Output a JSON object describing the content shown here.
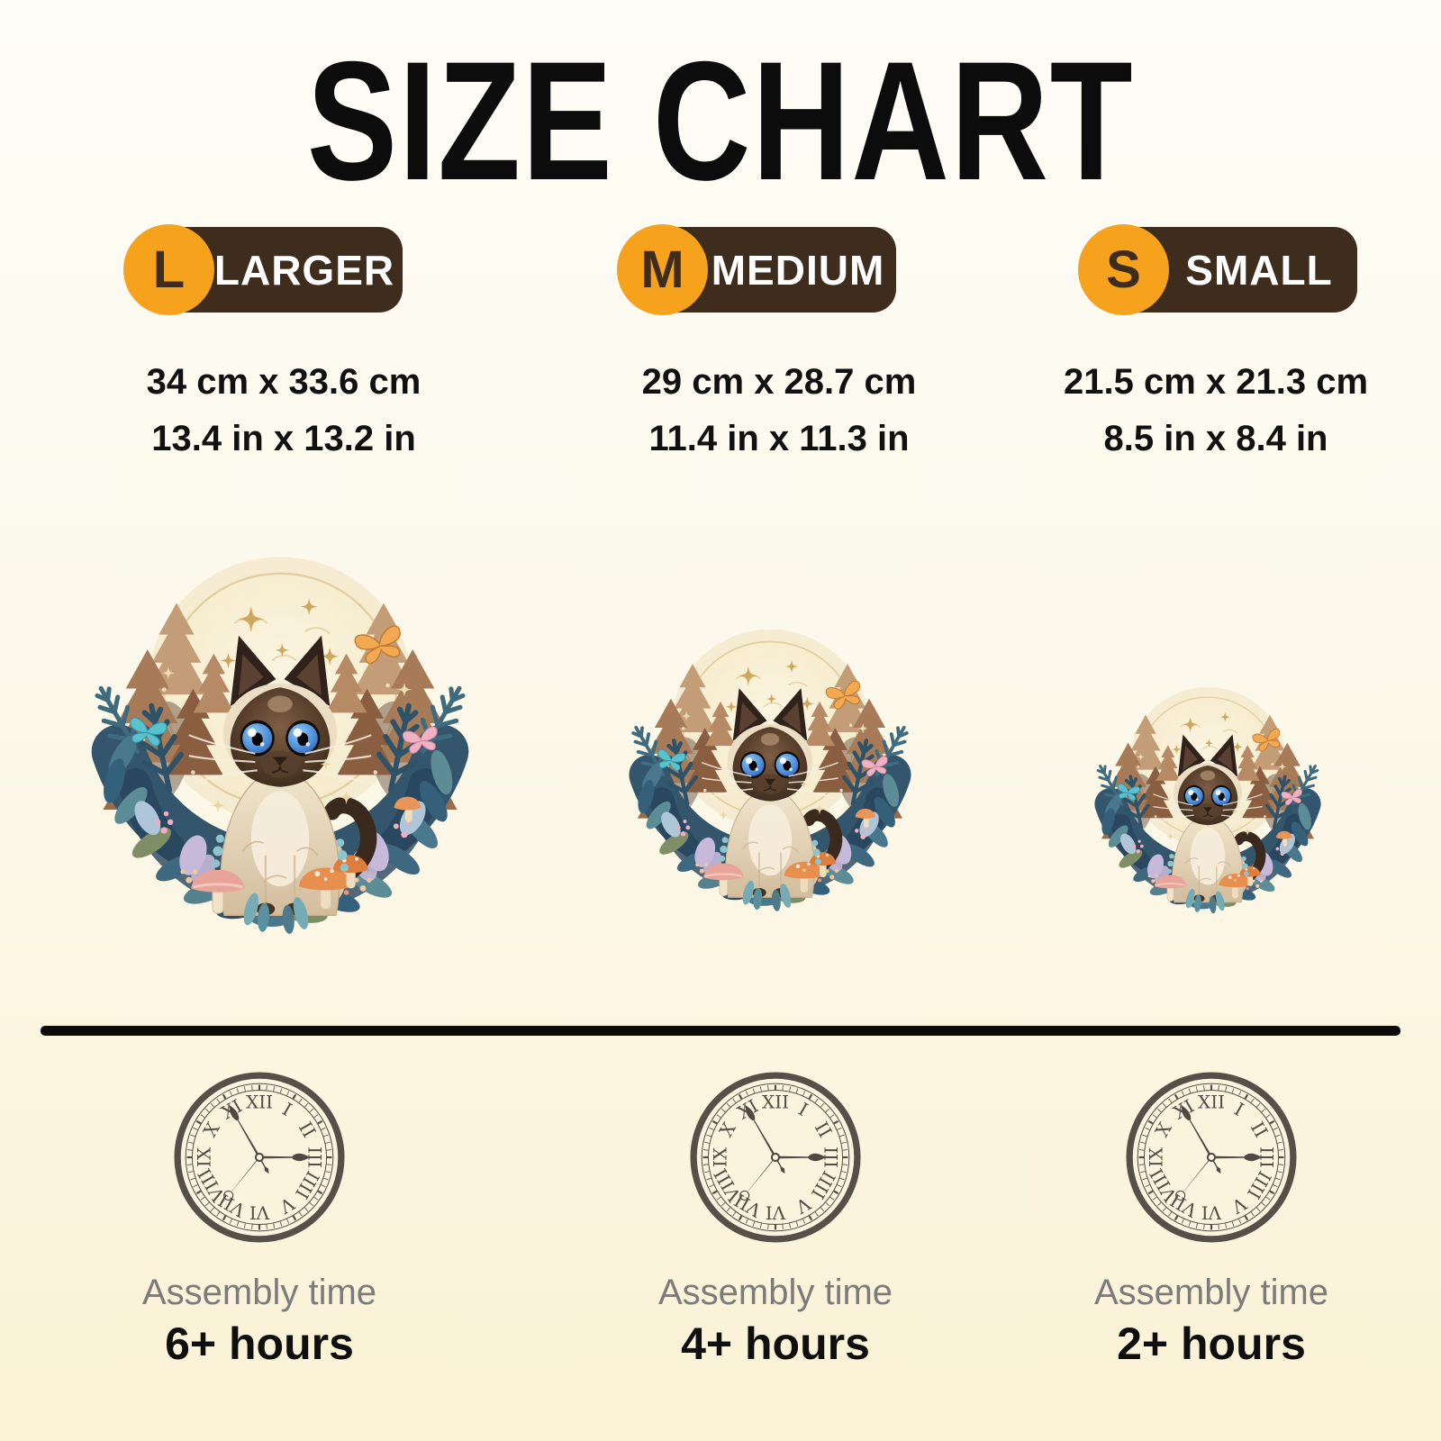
{
  "page": {
    "title": "SIZE CHART"
  },
  "colors": {
    "background_top": "#FEFDF6",
    "background_bottom": "#FBF2D5",
    "badge_circle": "#F6A21C",
    "badge_pill": "#3E2C1D",
    "badge_label": "#FFFFFF",
    "divider": "#0C0C0C",
    "clock": "#534D45",
    "clock_face": "#FAF4DF",
    "assembly_label_text": "#7B7B7B",
    "assembly_hours_text": "#0F0F0F"
  },
  "sizes": [
    {
      "letter": "L",
      "label": "LARGER",
      "dimensions_cm": "34 cm x 33.6 cm",
      "dimensions_in": "13.4 in x 13.2 in",
      "assembly_label": "Assembly time",
      "assembly_hours": "6+ hours"
    },
    {
      "letter": "M",
      "label": "MEDIUM",
      "dimensions_cm": "29 cm x 28.7 cm",
      "dimensions_in": "11.4 in x 11.3 in",
      "assembly_label": "Assembly time",
      "assembly_hours": "4+ hours"
    },
    {
      "letter": "S",
      "label": "SMALL",
      "dimensions_cm": "21.5 cm x 21.3 cm",
      "dimensions_in": "8.5 in x 8.4 in",
      "assembly_label": "Assembly time",
      "assembly_hours": "2+ hours"
    }
  ],
  "artwork": {
    "subject": "siamese-cat-forest-moon-puzzle"
  },
  "clock": {
    "numerals": [
      "XII",
      "I",
      "II",
      "III",
      "IIII",
      "V",
      "VI",
      "VII",
      "VIII",
      "IX",
      "X",
      "XI"
    ],
    "hands": {
      "hour": 90,
      "minute": -30,
      "second": 219
    }
  }
}
